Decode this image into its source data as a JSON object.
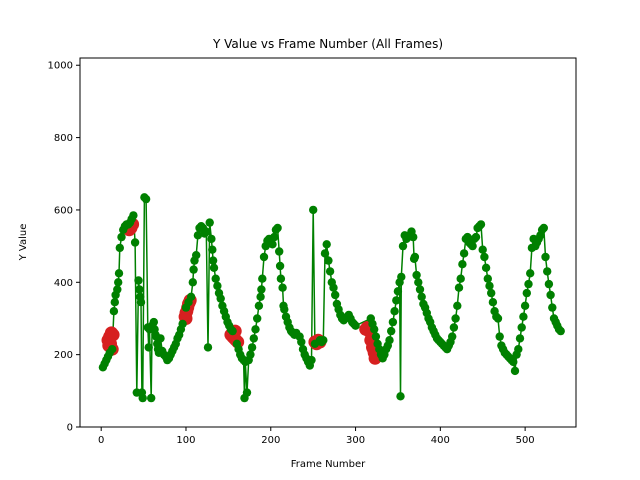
{
  "chart_data": {
    "type": "scatter",
    "title": "Y Value vs Frame Number (All Frames)",
    "xlabel": "Frame Number",
    "ylabel": "Y Value",
    "xlim": [
      -25,
      560
    ],
    "ylim": [
      0,
      1020
    ],
    "xticks": [
      0,
      100,
      200,
      300,
      400,
      500
    ],
    "yticks": [
      0,
      200,
      400,
      600,
      800,
      1000
    ],
    "grid": false,
    "colors": {
      "main": "#008000",
      "highlight": "#d62020",
      "line": "#008000"
    },
    "series": [
      {
        "role": "main",
        "points": [
          [
            2,
            165
          ],
          [
            4,
            175
          ],
          [
            6,
            185
          ],
          [
            8,
            195
          ],
          [
            10,
            205
          ],
          [
            13,
            215
          ],
          [
            15,
            320
          ],
          [
            16,
            345
          ],
          [
            17,
            365
          ],
          [
            19,
            380
          ],
          [
            20,
            400
          ],
          [
            21,
            425
          ],
          [
            22,
            495
          ],
          [
            24,
            525
          ],
          [
            26,
            545
          ],
          [
            28,
            555
          ],
          [
            30,
            560
          ],
          [
            32,
            560
          ],
          [
            34,
            565
          ],
          [
            36,
            575
          ],
          [
            38,
            585
          ],
          [
            40,
            510
          ],
          [
            42,
            95
          ],
          [
            44,
            405
          ],
          [
            45,
            380
          ],
          [
            46,
            360
          ],
          [
            47,
            345
          ],
          [
            48,
            95
          ],
          [
            49,
            80
          ],
          [
            51,
            635
          ],
          [
            53,
            630
          ],
          [
            55,
            275
          ],
          [
            56,
            220
          ],
          [
            57,
            270
          ],
          [
            59,
            80
          ],
          [
            60,
            280
          ],
          [
            62,
            290
          ],
          [
            63,
            270
          ],
          [
            64,
            255
          ],
          [
            65,
            250
          ],
          [
            66,
            230
          ],
          [
            67,
            215
          ],
          [
            68,
            205
          ],
          [
            70,
            245
          ],
          [
            72,
            210
          ],
          [
            74,
            200
          ],
          [
            76,
            195
          ],
          [
            78,
            185
          ],
          [
            80,
            190
          ],
          [
            82,
            200
          ],
          [
            84,
            210
          ],
          [
            86,
            220
          ],
          [
            88,
            230
          ],
          [
            90,
            245
          ],
          [
            92,
            255
          ],
          [
            94,
            270
          ],
          [
            96,
            285
          ],
          [
            100,
            330
          ],
          [
            103,
            345
          ],
          [
            106,
            360
          ],
          [
            108,
            400
          ],
          [
            109,
            435
          ],
          [
            110,
            460
          ],
          [
            112,
            475
          ],
          [
            114,
            530
          ],
          [
            116,
            550
          ],
          [
            118,
            555
          ],
          [
            120,
            550
          ],
          [
            122,
            535
          ],
          [
            124,
            540
          ],
          [
            126,
            220
          ],
          [
            128,
            565
          ],
          [
            130,
            520
          ],
          [
            131,
            490
          ],
          [
            132,
            460
          ],
          [
            133,
            440
          ],
          [
            135,
            410
          ],
          [
            137,
            390
          ],
          [
            139,
            370
          ],
          [
            141,
            355
          ],
          [
            143,
            335
          ],
          [
            145,
            320
          ],
          [
            147,
            305
          ],
          [
            149,
            290
          ],
          [
            151,
            280
          ],
          [
            153,
            270
          ],
          [
            155,
            265
          ],
          [
            160,
            230
          ],
          [
            162,
            215
          ],
          [
            164,
            200
          ],
          [
            166,
            190
          ],
          [
            168,
            185
          ],
          [
            169,
            80
          ],
          [
            170,
            180
          ],
          [
            172,
            95
          ],
          [
            174,
            185
          ],
          [
            176,
            200
          ],
          [
            178,
            220
          ],
          [
            180,
            245
          ],
          [
            182,
            270
          ],
          [
            184,
            300
          ],
          [
            186,
            335
          ],
          [
            188,
            360
          ],
          [
            189,
            380
          ],
          [
            190,
            410
          ],
          [
            192,
            470
          ],
          [
            194,
            500
          ],
          [
            196,
            515
          ],
          [
            198,
            520
          ],
          [
            200,
            510
          ],
          [
            202,
            505
          ],
          [
            204,
            525
          ],
          [
            206,
            545
          ],
          [
            208,
            550
          ],
          [
            210,
            485
          ],
          [
            211,
            445
          ],
          [
            212,
            410
          ],
          [
            214,
            385
          ],
          [
            215,
            335
          ],
          [
            216,
            325
          ],
          [
            218,
            305
          ],
          [
            220,
            290
          ],
          [
            222,
            275
          ],
          [
            224,
            265
          ],
          [
            226,
            260
          ],
          [
            228,
            255
          ],
          [
            230,
            260
          ],
          [
            234,
            250
          ],
          [
            236,
            235
          ],
          [
            238,
            215
          ],
          [
            240,
            200
          ],
          [
            242,
            190
          ],
          [
            244,
            180
          ],
          [
            246,
            170
          ],
          [
            248,
            185
          ],
          [
            250,
            600
          ],
          [
            252,
            230
          ],
          [
            258,
            240
          ],
          [
            260,
            235
          ],
          [
            262,
            240
          ],
          [
            264,
            480
          ],
          [
            266,
            505
          ],
          [
            268,
            460
          ],
          [
            270,
            430
          ],
          [
            272,
            400
          ],
          [
            274,
            385
          ],
          [
            276,
            365
          ],
          [
            278,
            340
          ],
          [
            280,
            325
          ],
          [
            282,
            310
          ],
          [
            284,
            300
          ],
          [
            286,
            295
          ],
          [
            288,
            300
          ],
          [
            290,
            305
          ],
          [
            292,
            310
          ],
          [
            294,
            300
          ],
          [
            296,
            290
          ],
          [
            298,
            285
          ],
          [
            300,
            280
          ],
          [
            318,
            300
          ],
          [
            320,
            285
          ],
          [
            322,
            270
          ],
          [
            324,
            250
          ],
          [
            326,
            230
          ],
          [
            328,
            215
          ],
          [
            330,
            200
          ],
          [
            332,
            190
          ],
          [
            334,
            200
          ],
          [
            336,
            215
          ],
          [
            338,
            225
          ],
          [
            340,
            240
          ],
          [
            342,
            265
          ],
          [
            344,
            290
          ],
          [
            346,
            320
          ],
          [
            348,
            350
          ],
          [
            350,
            375
          ],
          [
            352,
            400
          ],
          [
            353,
            85
          ],
          [
            354,
            415
          ],
          [
            356,
            500
          ],
          [
            358,
            530
          ],
          [
            360,
            520
          ],
          [
            362,
            525
          ],
          [
            364,
            530
          ],
          [
            366,
            540
          ],
          [
            368,
            525
          ],
          [
            369,
            465
          ],
          [
            370,
            470
          ],
          [
            372,
            420
          ],
          [
            374,
            400
          ],
          [
            376,
            380
          ],
          [
            378,
            360
          ],
          [
            380,
            340
          ],
          [
            382,
            330
          ],
          [
            384,
            315
          ],
          [
            386,
            300
          ],
          [
            388,
            290
          ],
          [
            390,
            275
          ],
          [
            392,
            265
          ],
          [
            394,
            255
          ],
          [
            396,
            245
          ],
          [
            398,
            240
          ],
          [
            400,
            235
          ],
          [
            402,
            230
          ],
          [
            404,
            225
          ],
          [
            406,
            220
          ],
          [
            408,
            215
          ],
          [
            410,
            225
          ],
          [
            412,
            235
          ],
          [
            414,
            250
          ],
          [
            416,
            275
          ],
          [
            418,
            300
          ],
          [
            420,
            335
          ],
          [
            422,
            385
          ],
          [
            424,
            410
          ],
          [
            426,
            450
          ],
          [
            428,
            480
          ],
          [
            430,
            520
          ],
          [
            432,
            525
          ],
          [
            434,
            510
          ],
          [
            436,
            505
          ],
          [
            438,
            500
          ],
          [
            440,
            520
          ],
          [
            442,
            525
          ],
          [
            444,
            550
          ],
          [
            446,
            555
          ],
          [
            448,
            560
          ],
          [
            450,
            490
          ],
          [
            452,
            470
          ],
          [
            454,
            440
          ],
          [
            456,
            410
          ],
          [
            458,
            390
          ],
          [
            460,
            370
          ],
          [
            462,
            345
          ],
          [
            464,
            320
          ],
          [
            466,
            305
          ],
          [
            468,
            300
          ],
          [
            470,
            250
          ],
          [
            472,
            225
          ],
          [
            474,
            215
          ],
          [
            476,
            205
          ],
          [
            478,
            200
          ],
          [
            480,
            195
          ],
          [
            482,
            190
          ],
          [
            484,
            185
          ],
          [
            486,
            180
          ],
          [
            488,
            155
          ],
          [
            490,
            200
          ],
          [
            492,
            215
          ],
          [
            494,
            245
          ],
          [
            496,
            275
          ],
          [
            498,
            305
          ],
          [
            500,
            335
          ],
          [
            502,
            370
          ],
          [
            504,
            395
          ],
          [
            506,
            425
          ],
          [
            508,
            495
          ],
          [
            510,
            520
          ],
          [
            512,
            500
          ],
          [
            514,
            510
          ],
          [
            516,
            520
          ],
          [
            518,
            530
          ],
          [
            520,
            545
          ],
          [
            522,
            550
          ],
          [
            524,
            470
          ],
          [
            526,
            430
          ],
          [
            528,
            395
          ],
          [
            530,
            365
          ],
          [
            532,
            330
          ],
          [
            534,
            300
          ],
          [
            536,
            290
          ],
          [
            538,
            280
          ],
          [
            540,
            270
          ],
          [
            542,
            265
          ]
        ]
      },
      {
        "role": "highlight",
        "points": [
          [
            8,
            240
          ],
          [
            10,
            250
          ],
          [
            12,
            260
          ],
          [
            14,
            255
          ],
          [
            9,
            225
          ],
          [
            11,
            230
          ],
          [
            13,
            215
          ],
          [
            33,
            545
          ],
          [
            35,
            550
          ],
          [
            37,
            560
          ],
          [
            99,
            305
          ],
          [
            100,
            315
          ],
          [
            101,
            320
          ],
          [
            102,
            330
          ],
          [
            103,
            340
          ],
          [
            104,
            345
          ],
          [
            105,
            350
          ],
          [
            100,
            300
          ],
          [
            153,
            255
          ],
          [
            155,
            250
          ],
          [
            157,
            245
          ],
          [
            159,
            240
          ],
          [
            161,
            235
          ],
          [
            156,
            260
          ],
          [
            158,
            265
          ],
          [
            252,
            235
          ],
          [
            254,
            230
          ],
          [
            256,
            240
          ],
          [
            258,
            235
          ],
          [
            312,
            270
          ],
          [
            314,
            275
          ],
          [
            316,
            265
          ],
          [
            318,
            240
          ],
          [
            320,
            220
          ],
          [
            322,
            205
          ],
          [
            324,
            200
          ],
          [
            321,
            215
          ],
          [
            323,
            190
          ]
        ]
      }
    ]
  }
}
